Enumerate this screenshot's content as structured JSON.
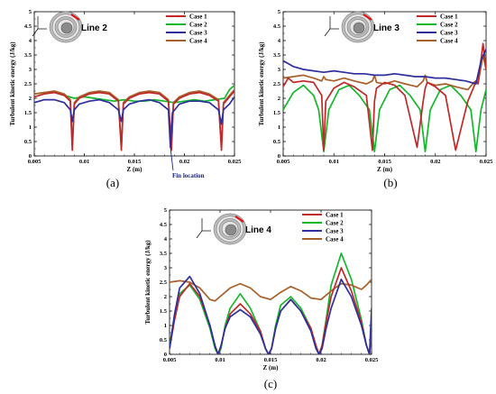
{
  "colors": {
    "Case 1": "#c0282a",
    "Case 2": "#12b82a",
    "Case 3": "#2e2f9c",
    "Case 4": "#a8602a"
  },
  "chart_data": [
    {
      "type": "line",
      "panel_label": "(a)",
      "inset_label": "Line 2",
      "xlabel": "Z (m)",
      "ylabel": "Turbulent kinetic energy (J/kg)",
      "xlim": [
        0.005,
        0.025
      ],
      "ylim": [
        0,
        5
      ],
      "xticks": [
        "0.005",
        "0.01",
        "0.015",
        "0.02",
        "0.025"
      ],
      "yticks": [
        "0",
        "0.5",
        "1",
        "1.5",
        "2",
        "2.5",
        "3",
        "3.5",
        "4",
        "4.5",
        "5"
      ],
      "annotation": "Fin location",
      "legend": [
        "Case 1",
        "Case 2",
        "Case 3",
        "Case 4"
      ],
      "series": [
        {
          "name": "Case 1",
          "x": [
            0.005,
            0.006,
            0.007,
            0.008,
            0.0086,
            0.0088,
            0.009,
            0.0095,
            0.0105,
            0.0115,
            0.0125,
            0.0134,
            0.0137,
            0.0139,
            0.0145,
            0.0155,
            0.0165,
            0.0175,
            0.0184,
            0.0187,
            0.0189,
            0.0195,
            0.0205,
            0.0215,
            0.0225,
            0.0234,
            0.0237,
            0.0239,
            0.0245,
            0.025
          ],
          "y": [
            2.05,
            2.15,
            2.2,
            2.1,
            1.9,
            0.2,
            1.8,
            2.0,
            2.15,
            2.2,
            2.15,
            1.9,
            0.2,
            1.8,
            2.0,
            2.15,
            2.2,
            2.15,
            1.9,
            0.2,
            1.8,
            2.0,
            2.15,
            2.2,
            2.1,
            1.9,
            0.2,
            1.8,
            2.05,
            2.25
          ]
        },
        {
          "name": "Case 2",
          "x": [
            0.005,
            0.006,
            0.007,
            0.008,
            0.009,
            0.01,
            0.011,
            0.012,
            0.013,
            0.014,
            0.015,
            0.016,
            0.017,
            0.018,
            0.019,
            0.02,
            0.021,
            0.022,
            0.023,
            0.024,
            0.0245,
            0.025
          ],
          "y": [
            2.15,
            2.2,
            2.2,
            2.1,
            2.0,
            2.05,
            2.0,
            1.95,
            1.9,
            1.95,
            1.9,
            1.9,
            1.95,
            1.9,
            1.85,
            1.9,
            1.95,
            1.9,
            1.95,
            2.0,
            2.3,
            2.45
          ]
        },
        {
          "name": "Case 3",
          "x": [
            0.005,
            0.006,
            0.007,
            0.008,
            0.0086,
            0.0088,
            0.009,
            0.0095,
            0.0105,
            0.0115,
            0.0125,
            0.0134,
            0.0137,
            0.0139,
            0.0145,
            0.0155,
            0.0165,
            0.0175,
            0.0184,
            0.0186,
            0.0188,
            0.0195,
            0.0205,
            0.0215,
            0.0225,
            0.0234,
            0.0237,
            0.0239,
            0.0245,
            0.025
          ],
          "y": [
            1.85,
            1.95,
            1.95,
            1.85,
            1.6,
            1.2,
            1.6,
            1.8,
            1.9,
            1.95,
            1.85,
            1.6,
            1.2,
            1.6,
            1.8,
            1.9,
            1.95,
            1.85,
            1.6,
            0.3,
            1.5,
            1.8,
            1.9,
            1.9,
            1.85,
            1.6,
            1.1,
            1.6,
            1.8,
            2.05
          ]
        },
        {
          "name": "Case 4",
          "x": [
            0.005,
            0.006,
            0.007,
            0.008,
            0.0086,
            0.0088,
            0.009,
            0.0095,
            0.0105,
            0.0115,
            0.0125,
            0.0134,
            0.0137,
            0.0139,
            0.0145,
            0.0155,
            0.0165,
            0.0175,
            0.0184,
            0.0187,
            0.0189,
            0.0195,
            0.0205,
            0.0215,
            0.0225,
            0.0234,
            0.0237,
            0.0239,
            0.0245,
            0.025
          ],
          "y": [
            2.15,
            2.2,
            2.25,
            2.15,
            1.95,
            0.35,
            1.85,
            2.05,
            2.2,
            2.25,
            2.2,
            1.95,
            0.35,
            1.85,
            2.05,
            2.2,
            2.25,
            2.2,
            1.95,
            0.35,
            1.85,
            2.05,
            2.2,
            2.25,
            2.15,
            1.95,
            0.35,
            1.85,
            2.1,
            2.3
          ]
        }
      ]
    },
    {
      "type": "line",
      "panel_label": "(b)",
      "inset_label": "Line 3",
      "xlabel": "Z (m)",
      "ylabel": "Turbulent kinetic energy (J/kg)",
      "xlim": [
        0.005,
        0.025
      ],
      "ylim": [
        0,
        5
      ],
      "xticks": [
        "0.005",
        "0.01",
        "0.015",
        "0.02",
        "0.025"
      ],
      "yticks": [
        "0",
        "0.5",
        "1",
        "1.5",
        "2",
        "2.5",
        "3",
        "3.5",
        "4",
        "4.5",
        "5"
      ],
      "legend": [
        "Case 1",
        "Case 2",
        "Case 3",
        "Case 4"
      ],
      "series": [
        {
          "name": "Case 1",
          "x": [
            0.005,
            0.0055,
            0.006,
            0.007,
            0.008,
            0.0088,
            0.009,
            0.0092,
            0.01,
            0.011,
            0.012,
            0.0132,
            0.0138,
            0.014,
            0.0142,
            0.015,
            0.016,
            0.017,
            0.0182,
            0.0188,
            0.019,
            0.0192,
            0.02,
            0.021,
            0.022,
            0.0232,
            0.0238,
            0.024,
            0.0242,
            0.0247,
            0.025
          ],
          "y": [
            2.4,
            2.7,
            2.55,
            2.6,
            2.55,
            2.1,
            0.2,
            1.9,
            2.35,
            2.55,
            2.4,
            2.1,
            0.2,
            1.9,
            2.35,
            2.55,
            2.45,
            2.1,
            0.3,
            1.9,
            2.35,
            2.55,
            2.4,
            2.1,
            0.2,
            1.9,
            2.4,
            2.6,
            2.5,
            3.9,
            3.0
          ]
        },
        {
          "name": "Case 2",
          "x": [
            0.005,
            0.006,
            0.007,
            0.008,
            0.0085,
            0.009,
            0.0095,
            0.0105,
            0.0115,
            0.0125,
            0.0135,
            0.014,
            0.0145,
            0.0155,
            0.0165,
            0.0175,
            0.0185,
            0.019,
            0.0195,
            0.0205,
            0.0215,
            0.0225,
            0.0235,
            0.024,
            0.0245,
            0.025
          ],
          "y": [
            1.6,
            2.2,
            2.45,
            2.1,
            1.6,
            0.15,
            1.6,
            2.3,
            2.45,
            2.1,
            1.6,
            0.15,
            1.6,
            2.3,
            2.45,
            2.1,
            1.6,
            0.15,
            1.6,
            2.3,
            2.45,
            2.1,
            1.6,
            0.15,
            1.6,
            2.3
          ]
        },
        {
          "name": "Case 3",
          "x": [
            0.005,
            0.006,
            0.007,
            0.008,
            0.009,
            0.01,
            0.011,
            0.012,
            0.013,
            0.014,
            0.015,
            0.016,
            0.017,
            0.018,
            0.019,
            0.02,
            0.021,
            0.022,
            0.023,
            0.024,
            0.0245,
            0.025
          ],
          "y": [
            3.3,
            3.1,
            3.0,
            2.95,
            2.9,
            2.95,
            2.9,
            2.85,
            2.85,
            2.8,
            2.8,
            2.85,
            2.8,
            2.75,
            2.75,
            2.7,
            2.7,
            2.65,
            2.6,
            2.5,
            3.3,
            3.7
          ]
        },
        {
          "name": "Case 4",
          "x": [
            0.005,
            0.006,
            0.007,
            0.008,
            0.0088,
            0.009,
            0.0092,
            0.01,
            0.011,
            0.012,
            0.0132,
            0.0138,
            0.014,
            0.0142,
            0.015,
            0.016,
            0.017,
            0.0182,
            0.0188,
            0.019,
            0.0192,
            0.02,
            0.021,
            0.022,
            0.0232,
            0.0238,
            0.024,
            0.0242,
            0.0247,
            0.025
          ],
          "y": [
            2.7,
            2.75,
            2.8,
            2.7,
            2.6,
            2.75,
            2.65,
            2.6,
            2.7,
            2.6,
            2.5,
            2.6,
            2.8,
            2.55,
            2.5,
            2.6,
            2.5,
            2.4,
            2.6,
            2.8,
            2.55,
            2.45,
            2.5,
            2.4,
            2.3,
            2.55,
            2.6,
            2.5,
            3.5,
            3.0
          ]
        }
      ]
    },
    {
      "type": "line",
      "panel_label": "(c)",
      "inset_label": "Line 4",
      "xlabel": "Z (m)",
      "ylabel": "Turbulent kinetic energy (J/kg)",
      "xlim": [
        0.005,
        0.025
      ],
      "ylim": [
        0,
        5
      ],
      "xticks": [
        "0.005",
        "0.01",
        "0.015",
        "0.02",
        "0.025"
      ],
      "yticks": [
        "0",
        "0.5",
        "1",
        "1.5",
        "2",
        "2.5",
        "3",
        "3.5",
        "4",
        "4.5",
        "5"
      ],
      "legend": [
        "Case 1",
        "Case 2",
        "Case 3",
        "Case 4"
      ],
      "series": [
        {
          "name": "Case 1",
          "x": [
            0.005,
            0.0055,
            0.006,
            0.007,
            0.008,
            0.009,
            0.0095,
            0.0098,
            0.0101,
            0.0105,
            0.011,
            0.012,
            0.013,
            0.014,
            0.0145,
            0.0148,
            0.0151,
            0.0155,
            0.016,
            0.017,
            0.018,
            0.019,
            0.0195,
            0.0198,
            0.0201,
            0.0205,
            0.021,
            0.022,
            0.023,
            0.024,
            0.0245,
            0.0248,
            0.025
          ],
          "y": [
            0.2,
            1.2,
            2.0,
            2.45,
            2.0,
            1.0,
            0.3,
            0.0,
            0.3,
            0.9,
            1.4,
            1.75,
            1.4,
            0.8,
            0.2,
            0.0,
            0.2,
            0.9,
            1.5,
            1.9,
            1.5,
            0.9,
            0.3,
            0.0,
            0.3,
            1.1,
            2.0,
            3.0,
            2.2,
            1.1,
            0.3,
            0.0,
            1.0
          ]
        },
        {
          "name": "Case 2",
          "x": [
            0.005,
            0.0055,
            0.006,
            0.007,
            0.008,
            0.009,
            0.0095,
            0.0098,
            0.0101,
            0.0105,
            0.011,
            0.012,
            0.013,
            0.014,
            0.0145,
            0.0148,
            0.0151,
            0.0155,
            0.016,
            0.017,
            0.018,
            0.019,
            0.0195,
            0.0198,
            0.0201,
            0.0205,
            0.021,
            0.022,
            0.023,
            0.024,
            0.0245,
            0.0248,
            0.025
          ],
          "y": [
            0.3,
            1.3,
            2.1,
            2.4,
            1.9,
            0.9,
            0.2,
            0.0,
            0.2,
            1.0,
            1.6,
            2.1,
            1.6,
            0.8,
            0.2,
            0.0,
            0.2,
            1.0,
            1.7,
            2.0,
            1.6,
            0.9,
            0.2,
            0.0,
            0.3,
            1.2,
            2.4,
            3.5,
            2.6,
            1.2,
            0.3,
            0.0,
            0.8
          ]
        },
        {
          "name": "Case 3",
          "x": [
            0.005,
            0.0055,
            0.006,
            0.007,
            0.008,
            0.009,
            0.0095,
            0.0098,
            0.0101,
            0.0105,
            0.011,
            0.012,
            0.013,
            0.014,
            0.0145,
            0.0148,
            0.0151,
            0.0155,
            0.016,
            0.017,
            0.018,
            0.019,
            0.0195,
            0.0198,
            0.0201,
            0.0205,
            0.021,
            0.022,
            0.023,
            0.024,
            0.0245,
            0.0248,
            0.025
          ],
          "y": [
            0.2,
            1.4,
            2.3,
            2.7,
            2.1,
            1.0,
            0.3,
            0.0,
            0.3,
            0.9,
            1.3,
            1.55,
            1.3,
            0.7,
            0.2,
            0.0,
            0.2,
            0.9,
            1.5,
            1.9,
            1.5,
            0.8,
            0.2,
            0.0,
            0.2,
            0.9,
            1.6,
            2.6,
            2.0,
            1.0,
            0.3,
            0.0,
            1.6
          ]
        },
        {
          "name": "Case 4",
          "x": [
            0.005,
            0.006,
            0.007,
            0.008,
            0.009,
            0.0095,
            0.01,
            0.011,
            0.012,
            0.013,
            0.014,
            0.015,
            0.016,
            0.017,
            0.018,
            0.019,
            0.02,
            0.021,
            0.022,
            0.023,
            0.024,
            0.0245,
            0.025
          ],
          "y": [
            2.5,
            2.55,
            2.5,
            2.3,
            1.9,
            1.85,
            2.0,
            2.3,
            2.45,
            2.3,
            2.0,
            1.9,
            2.15,
            2.35,
            2.2,
            1.95,
            1.9,
            2.2,
            2.45,
            2.4,
            2.25,
            2.4,
            2.6
          ]
        }
      ]
    }
  ]
}
